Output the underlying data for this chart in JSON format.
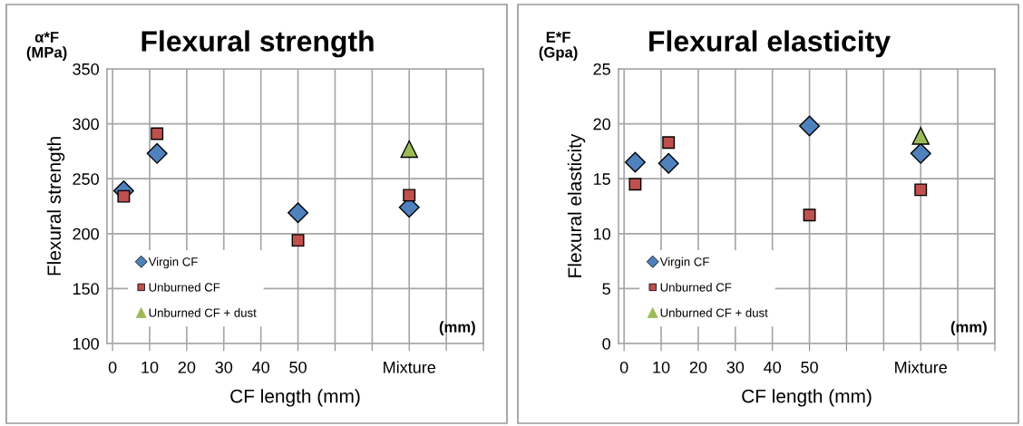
{
  "chart_data": [
    {
      "type": "scatter",
      "title": "Flexural strength",
      "xlabel": "CF length (mm)",
      "ylabel": "Flexural strength",
      "annotations": [
        "α*F\n(MPa)",
        "(mm)"
      ],
      "x": [
        3,
        12,
        50,
        80
      ],
      "series": [
        {
          "name": "Virgin CF",
          "color": "#4f81bd",
          "marker": "diamond",
          "values": [
            239,
            273,
            219,
            224
          ]
        },
        {
          "name": "Unburned CF",
          "color": "#c0504d",
          "marker": "square",
          "values": [
            234,
            291,
            194,
            235
          ]
        },
        {
          "name": "Unburned CF + dust",
          "color": "#9bbb59",
          "marker": "triangle",
          "x": [
            80
          ],
          "values": [
            277
          ]
        }
      ],
      "xlim": [
        -1.5,
        100
      ],
      "xticks": [
        0,
        10,
        20,
        30,
        40,
        50,
        {
          "value": 60,
          "label": null
        },
        {
          "value": 70,
          "label": null
        },
        {
          "value": 80,
          "label": "Mixture"
        },
        {
          "value": 90,
          "label": null
        },
        {
          "value": 100,
          "label": null
        }
      ],
      "ylim": [
        100,
        350
      ],
      "yticks": [
        100,
        150,
        200,
        250,
        300,
        350
      ],
      "grid": true,
      "legend": "bottom left"
    },
    {
      "type": "scatter",
      "title": "Flexural elasticity",
      "xlabel": "CF length (mm)",
      "ylabel": "Flexural elasticity",
      "annotations": [
        "E*F\n(Gpa)",
        "(mm)"
      ],
      "x": [
        3,
        12,
        50,
        80
      ],
      "series": [
        {
          "name": "Virgin CF",
          "color": "#4f81bd",
          "marker": "diamond",
          "values": [
            16.5,
            16.4,
            19.8,
            17.3
          ]
        },
        {
          "name": "Unburned CF",
          "color": "#c0504d",
          "marker": "square",
          "values": [
            14.5,
            18.3,
            11.7,
            14.0
          ]
        },
        {
          "name": "Unburned CF + dust",
          "color": "#9bbb59",
          "marker": "triangle",
          "x": [
            80
          ],
          "values": [
            18.9
          ]
        }
      ],
      "xlim": [
        -1.5,
        100
      ],
      "xticks": [
        0,
        10,
        20,
        30,
        40,
        50,
        {
          "value": 60,
          "label": null
        },
        {
          "value": 70,
          "label": null
        },
        {
          "value": 80,
          "label": "Mixture"
        },
        {
          "value": 90,
          "label": null
        },
        {
          "value": 100,
          "label": null
        }
      ],
      "ylim": [
        0,
        25
      ],
      "yticks": [
        0,
        5,
        10,
        15,
        20,
        25
      ],
      "grid": true,
      "legend": "bottom left"
    }
  ]
}
